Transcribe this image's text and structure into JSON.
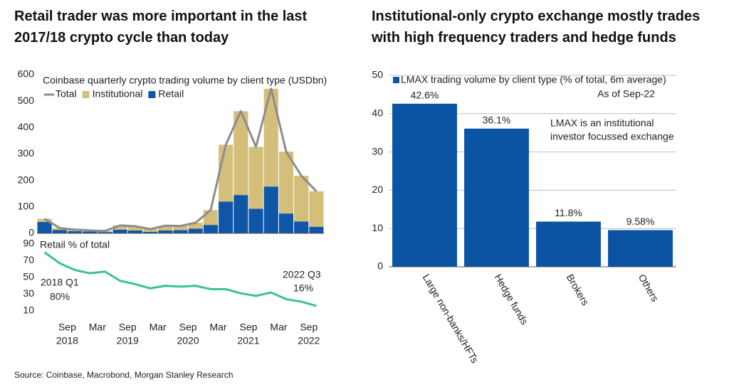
{
  "chart_data": [
    {
      "type": "stacked_bar",
      "title": "Retail trader was more important in the last 2017/18 crypto cycle than today",
      "subtitle": "Coinbase quarterly crypto trading volume by client type (USDbn)",
      "categories": [
        null,
        null,
        null,
        null,
        null,
        null,
        null,
        null,
        null,
        null,
        null,
        null,
        null,
        null,
        null,
        null,
        null,
        null,
        null
      ],
      "series": [
        {
          "name": "Total",
          "kind": "line",
          "color": "#8c8c8c",
          "values": [
            55,
            20,
            14,
            11,
            9,
            30,
            27,
            16,
            29,
            28,
            40,
            88,
            335,
            462,
            327,
            547,
            309,
            218,
            159
          ]
        },
        {
          "name": "Institutional",
          "kind": "bar",
          "color": "#d4bf7a",
          "values": [
            12,
            7,
            6,
            4,
            4,
            16,
            16,
            10,
            18,
            16,
            22,
            56,
            215,
            317,
            234,
            370,
            234,
            173,
            134
          ]
        },
        {
          "name": "Retail",
          "kind": "bar",
          "color": "#0f56a6",
          "values": [
            43,
            13,
            8,
            7,
            5,
            14,
            11,
            6,
            11,
            12,
            18,
            32,
            120,
            145,
            93,
            177,
            75,
            45,
            25
          ]
        }
      ],
      "ylim": [
        0,
        600
      ],
      "yticks": [
        0,
        100,
        200,
        300,
        400,
        500,
        600
      ],
      "grid": false
    },
    {
      "type": "line",
      "categories": [
        null,
        null,
        null,
        null,
        null,
        null,
        null,
        null,
        null,
        null,
        null,
        null,
        null,
        null,
        null,
        null,
        null,
        null,
        null
      ],
      "series": [
        {
          "name": "Retail % of total",
          "color": "#3dbf9a",
          "values": [
            80,
            67,
            59,
            55,
            57,
            46,
            42,
            37,
            40,
            39,
            40,
            36,
            36,
            31,
            28,
            32,
            24,
            21,
            16
          ]
        }
      ],
      "ylim": [
        10,
        90
      ],
      "yticks": [
        10,
        30,
        50,
        70,
        90
      ],
      "grid": false,
      "x_ticks": [
        {
          "month": "Sep",
          "year": "2018"
        },
        {
          "month": "Mar",
          "year": null
        },
        {
          "month": "Sep",
          "year": "2019"
        },
        {
          "month": "Mar",
          "year": null
        },
        {
          "month": "Sep",
          "year": "2020"
        },
        {
          "month": "Mar",
          "year": null
        },
        {
          "month": "Sep",
          "year": "2021"
        },
        {
          "month": "Mar",
          "year": null
        },
        {
          "month": "Sep",
          "year": "2022"
        }
      ],
      "annotations": [
        {
          "text": "2018 Q1"
        },
        {
          "text": "80%"
        },
        {
          "text": "2022 Q3"
        },
        {
          "text": "16%"
        }
      ]
    },
    {
      "type": "bar",
      "title": "Institutional-only crypto exchange mostly trades with high frequency traders and hedge funds",
      "categories": [
        "Large non-banks/HFTs",
        "Hedge funds",
        "Brokers",
        "Others"
      ],
      "series": [
        {
          "name": "LMAX trading volume by client type (% of total, 6m average)",
          "color": "#0a54a3",
          "values": [
            42.6,
            36.1,
            11.8,
            9.58
          ],
          "value_labels": [
            "42.6%",
            "36.1%",
            "11.8%",
            "9.58%"
          ]
        }
      ],
      "ylim": [
        0,
        50
      ],
      "yticks": [
        0,
        10,
        20,
        30,
        40,
        50
      ],
      "grid": true,
      "annotations": [
        {
          "text": "As of Sep-22"
        },
        {
          "lines": [
            "LMAX is an institutional",
            "investor focussed exchange"
          ]
        }
      ]
    }
  ],
  "source": "Source: Coinbase, Macrobond, Morgan Stanley Research"
}
